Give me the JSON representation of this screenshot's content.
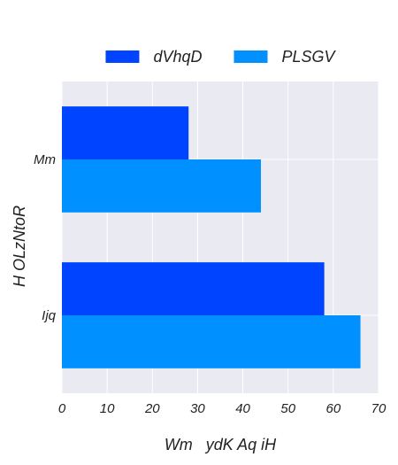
{
  "chart_data": {
    "type": "bar",
    "orientation": "horizontal",
    "title": "",
    "xlabel": "Wm   ydK Aq iH",
    "ylabel": "H OLzNtoR",
    "categories": [
      "Mm",
      "Ijq"
    ],
    "series": [
      {
        "name": "dVhqD",
        "values": [
          28,
          58
        ],
        "color": "#0044ff"
      },
      {
        "name": "PLSGV",
        "values": [
          44,
          66
        ],
        "color": "#0090ff"
      }
    ],
    "xlim": [
      0,
      70
    ],
    "xticks": [
      0,
      10,
      20,
      30,
      40,
      50,
      60,
      70
    ],
    "grid": true,
    "legend_position": "top-center",
    "background_color": "#eaeaf2",
    "grid_color": "#ffffff"
  }
}
